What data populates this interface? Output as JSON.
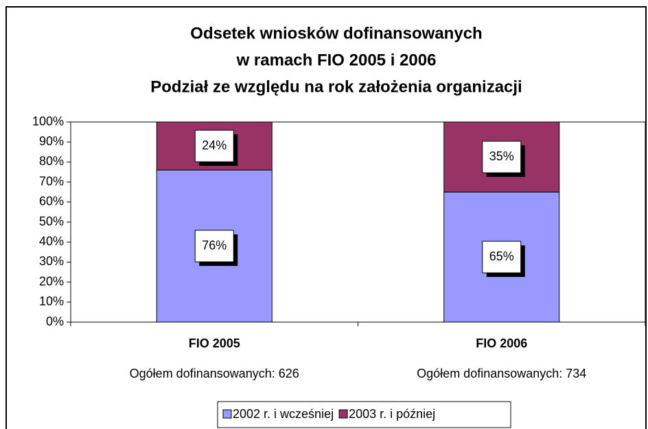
{
  "chart_data": {
    "type": "stacked-bar",
    "title": [
      "Odsetek wniosków dofinansowanych",
      "w ramach FIO 2005 i 2006",
      "Podział ze względu na rok założenia organizacji"
    ],
    "categories": [
      "FIO 2005",
      "FIO 2006"
    ],
    "category_notes": [
      "Ogółem dofinansowanych: 626",
      "Ogółem dofinansowanych: 734"
    ],
    "series": [
      {
        "name": "2002 r. i wcześniej",
        "color": "#9999ff",
        "values": [
          76,
          65
        ],
        "value_labels": [
          "76%",
          "65%"
        ]
      },
      {
        "name": "2003 r. i później",
        "color": "#993366",
        "values": [
          24,
          35
        ],
        "value_labels": [
          "24%",
          "35%"
        ]
      }
    ],
    "ylim": [
      0,
      100
    ],
    "yticks": [
      {
        "value": 0,
        "label": "0%"
      },
      {
        "value": 10,
        "label": "10%"
      },
      {
        "value": 20,
        "label": "20%"
      },
      {
        "value": 30,
        "label": "30%"
      },
      {
        "value": 40,
        "label": "40%"
      },
      {
        "value": 50,
        "label": "50%"
      },
      {
        "value": 60,
        "label": "60%"
      },
      {
        "value": 70,
        "label": "70%"
      },
      {
        "value": 80,
        "label": "80%"
      },
      {
        "value": 90,
        "label": "90%"
      },
      {
        "value": 100,
        "label": "100%"
      }
    ],
    "legend": "bottom"
  }
}
